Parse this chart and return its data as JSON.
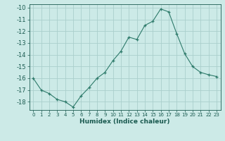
{
  "x": [
    0,
    1,
    2,
    3,
    4,
    5,
    6,
    7,
    8,
    9,
    10,
    11,
    12,
    13,
    14,
    15,
    16,
    17,
    18,
    19,
    20,
    21,
    22,
    23
  ],
  "y": [
    -16.0,
    -17.0,
    -17.3,
    -17.8,
    -18.0,
    -18.45,
    -17.5,
    -16.8,
    -16.0,
    -15.5,
    -14.5,
    -13.7,
    -12.5,
    -12.7,
    -11.5,
    -11.15,
    -10.1,
    -10.35,
    -12.2,
    -13.9,
    -15.0,
    -15.5,
    -15.7,
    -15.85
  ],
  "xlabel": "Humidex (Indice chaleur)",
  "line_color": "#2d7a6a",
  "bg_color": "#cceae7",
  "grid_color": "#aacfcc",
  "tick_color": "#1a5a50",
  "ylim": [
    -18.7,
    -9.7
  ],
  "xlim": [
    -0.5,
    23.5
  ],
  "yticks": [
    -10,
    -11,
    -12,
    -13,
    -14,
    -15,
    -16,
    -17,
    -18
  ],
  "xtick_labels": [
    "0",
    "1",
    "2",
    "3",
    "4",
    "5",
    "6",
    "7",
    "8",
    "9",
    "10",
    "11",
    "12",
    "13",
    "14",
    "15",
    "16",
    "17",
    "18",
    "19",
    "20",
    "21",
    "22",
    "23"
  ],
  "xlabel_fontsize": 6.5,
  "ytick_fontsize": 6.0,
  "xtick_fontsize": 5.0
}
